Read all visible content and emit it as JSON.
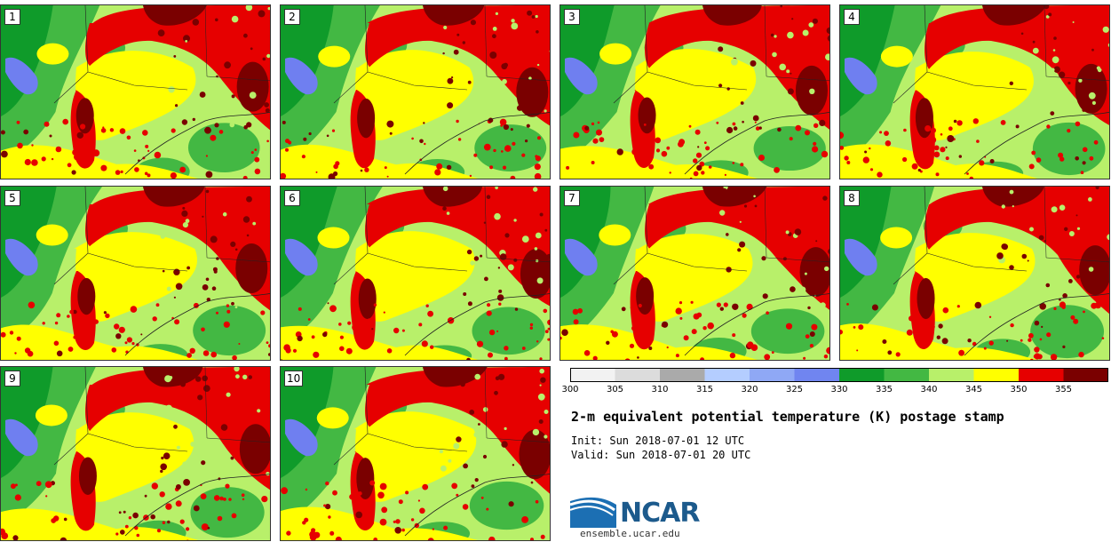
{
  "chart_data": {
    "type": "heatmap",
    "title": "2-m equivalent potential temperature (K) postage stamp",
    "init": "Init: Sun 2018-07-01 12 UTC",
    "valid": "Valid: Sun 2018-07-01 20 UTC",
    "members": [
      "1",
      "2",
      "3",
      "4",
      "5",
      "6",
      "7",
      "8",
      "9",
      "10"
    ],
    "colorbar": {
      "levels": [
        300,
        305,
        310,
        315,
        320,
        325,
        330,
        335,
        340,
        345,
        350,
        355,
        360
      ],
      "tick_labels": [
        "300",
        "305",
        "310",
        "315",
        "320",
        "325",
        "330",
        "335",
        "340",
        "345",
        "350",
        "355"
      ],
      "colors": [
        "#f2f2f2",
        "#dcdcdc",
        "#aaaaaa",
        "#b4cdff",
        "#8fa8f5",
        "#7085f0",
        "#0f9b2a",
        "#43b843",
        "#b8f06a",
        "#ffff00",
        "#e60000",
        "#7a0000"
      ]
    },
    "field_colors": {
      "lake": "#6f7ff0",
      "dark_green": "#0f9b2a",
      "mid_green": "#43b843",
      "light_green": "#b8f06a",
      "yellow": "#ffff00",
      "red": "#e60000",
      "dark_red": "#7a0000"
    }
  },
  "branding": {
    "logo_text": "NCAR",
    "url": "ensemble.ucar.edu"
  }
}
